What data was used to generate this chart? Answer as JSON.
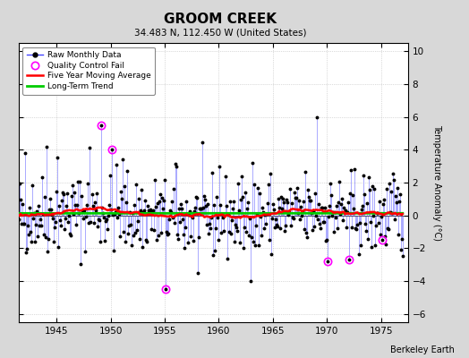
{
  "title": "GROOM CREEK",
  "subtitle": "34.483 N, 112.450 W (United States)",
  "ylabel": "Temperature Anomaly (°C)",
  "attribution": "Berkeley Earth",
  "xlim": [
    1941.5,
    1977.5
  ],
  "ylim": [
    -6.5,
    10.5
  ],
  "yticks": [
    -6,
    -4,
    -2,
    0,
    2,
    4,
    6,
    8,
    10
  ],
  "xticks": [
    1945,
    1950,
    1955,
    1960,
    1965,
    1970,
    1975
  ],
  "line_color": "#aaaaff",
  "dot_color": "#000000",
  "ma_color": "#ff0000",
  "trend_color": "#00cc00",
  "qc_color": "#ff00ff",
  "background_color": "#d8d8d8",
  "plot_bg_color": "#ffffff",
  "seed": 42,
  "n_months": 432,
  "start_year": 1941.083
}
